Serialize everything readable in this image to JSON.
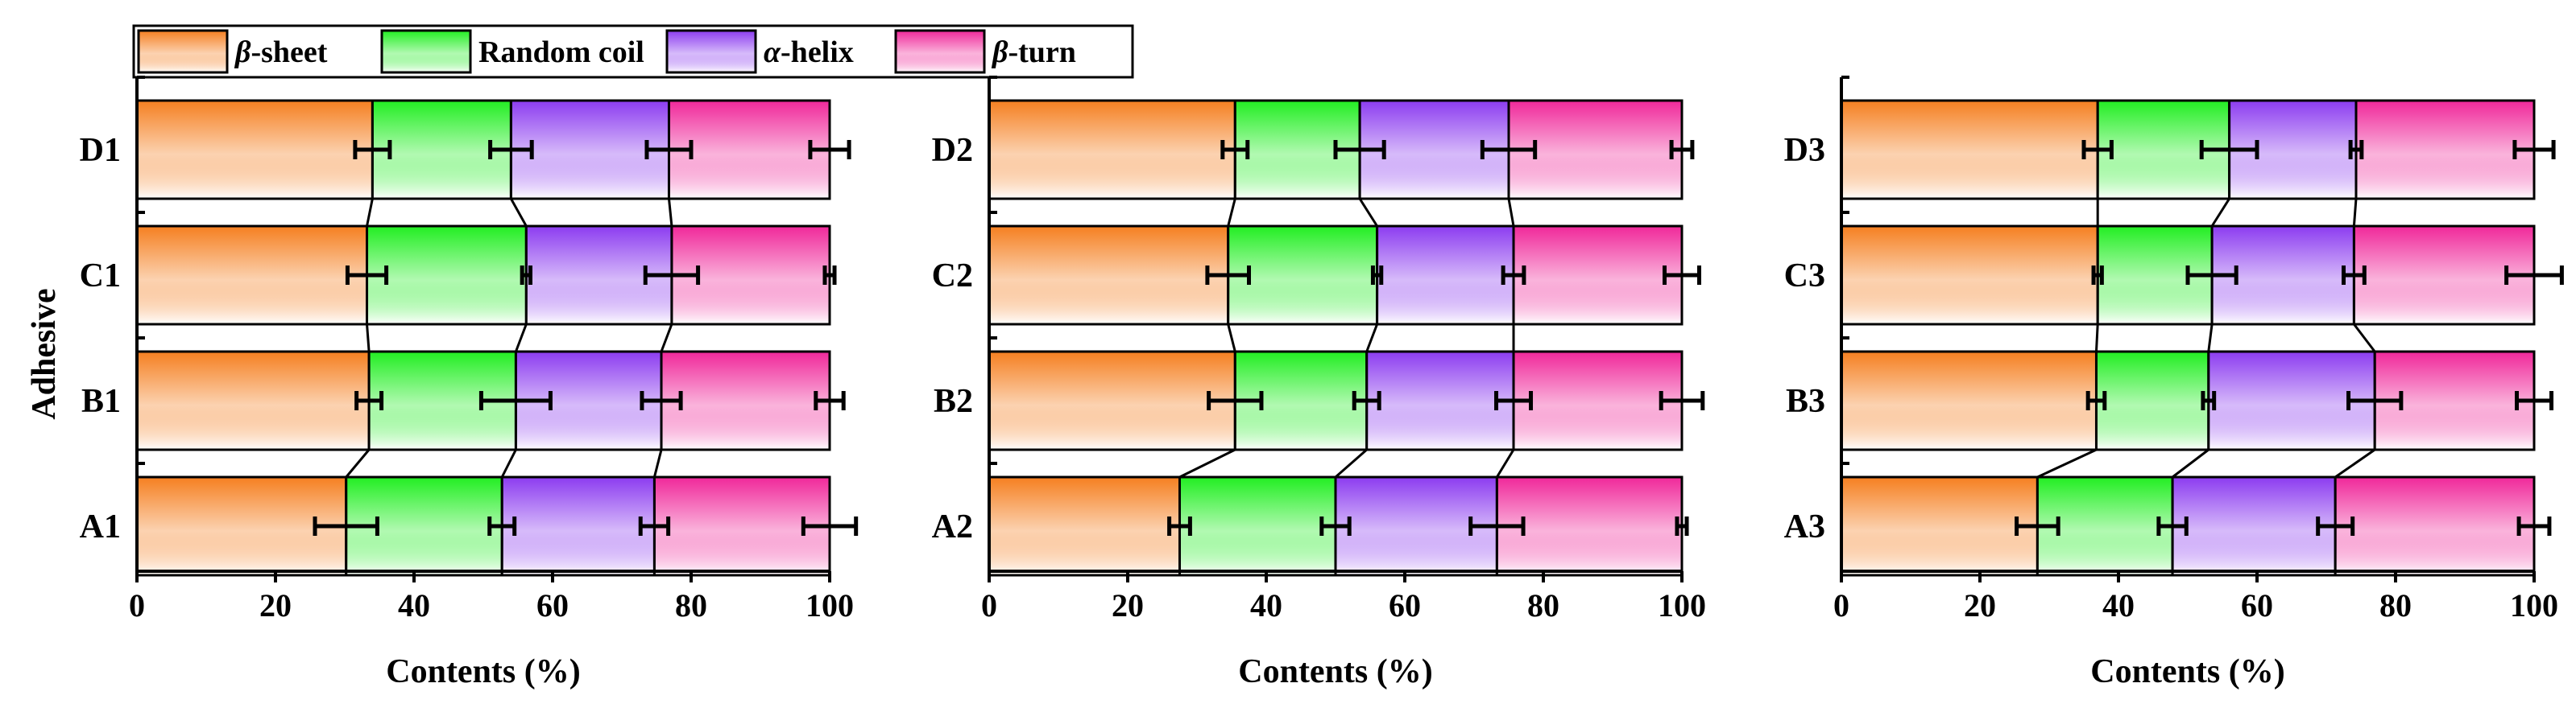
{
  "colors": {
    "beta_sheet": "#f57f20",
    "random_coil": "#22ee22",
    "alpha_helix": "#8c3cf0",
    "beta_turn": "#f0289a",
    "error_bar": "#000000"
  },
  "legend": {
    "items": [
      {
        "key": "beta_sheet",
        "greek": "β",
        "rest": "-sheet"
      },
      {
        "key": "random_coil",
        "greek": "",
        "rest": "Random coil"
      },
      {
        "key": "alpha_helix",
        "greek": "α",
        "rest": "-helix"
      },
      {
        "key": "beta_turn",
        "greek": "β",
        "rest": "-turn"
      }
    ]
  },
  "y_axis_title": "Adhesive",
  "chart_data": [
    {
      "type": "bar",
      "stacked": true,
      "orientation": "horizontal",
      "xlabel": "Contents (%)",
      "xlim": [
        0,
        100
      ],
      "xticks": [
        0,
        20,
        40,
        60,
        80,
        100
      ],
      "categories": [
        "D1",
        "C1",
        "B1",
        "A1"
      ],
      "series": [
        {
          "name": "β-sheet",
          "values": [
            34.0,
            33.2,
            33.5,
            30.2
          ],
          "errors": [
            2.5,
            2.8,
            1.8,
            4.5
          ]
        },
        {
          "name": "Random coil",
          "values": [
            20.0,
            23.0,
            21.2,
            22.5
          ],
          "errors": [
            3.0,
            0.6,
            5.0,
            1.8
          ]
        },
        {
          "name": "α-helix",
          "values": [
            22.8,
            21.0,
            21.0,
            22.0
          ],
          "errors": [
            3.2,
            3.8,
            2.8,
            2.0
          ]
        },
        {
          "name": "β-turn",
          "values": [
            23.2,
            22.8,
            24.3,
            25.3
          ],
          "errors": [
            2.8,
            0.7,
            2.0,
            3.8
          ]
        }
      ]
    },
    {
      "type": "bar",
      "stacked": true,
      "orientation": "horizontal",
      "xlabel": "Contents (%)",
      "xlim": [
        0,
        100
      ],
      "xticks": [
        0,
        20,
        40,
        60,
        80,
        100
      ],
      "categories": [
        "D2",
        "C2",
        "B2",
        "A2"
      ],
      "series": [
        {
          "name": "β-sheet",
          "values": [
            35.5,
            34.5,
            35.5,
            27.5
          ],
          "errors": [
            1.8,
            3.0,
            3.8,
            1.5
          ]
        },
        {
          "name": "Random coil",
          "values": [
            18.0,
            21.5,
            19.0,
            22.5
          ],
          "errors": [
            3.5,
            0.6,
            1.8,
            2.0
          ]
        },
        {
          "name": "α-helix",
          "values": [
            21.5,
            19.7,
            21.2,
            23.3
          ],
          "errors": [
            3.8,
            1.5,
            2.5,
            3.8
          ]
        },
        {
          "name": "β-turn",
          "values": [
            25.0,
            24.3,
            24.3,
            26.7
          ],
          "errors": [
            1.5,
            2.5,
            3.0,
            0.7
          ]
        }
      ]
    },
    {
      "type": "bar",
      "stacked": true,
      "orientation": "horizontal",
      "xlabel": "Contents (%)",
      "xlim": [
        0,
        100
      ],
      "xticks": [
        0,
        20,
        40,
        60,
        80,
        100
      ],
      "categories": [
        "D3",
        "C3",
        "B3",
        "A3"
      ],
      "series": [
        {
          "name": "β-sheet",
          "values": [
            37.0,
            37.0,
            36.8,
            28.3
          ],
          "errors": [
            2.0,
            0.6,
            1.2,
            3.0
          ]
        },
        {
          "name": "Random coil",
          "values": [
            19.0,
            16.5,
            16.2,
            19.5
          ],
          "errors": [
            4.0,
            3.5,
            0.8,
            2.0
          ]
        },
        {
          "name": "α-helix",
          "values": [
            18.3,
            20.5,
            24.0,
            23.5
          ],
          "errors": [
            0.8,
            1.5,
            3.8,
            2.5
          ]
        },
        {
          "name": "β-turn",
          "values": [
            25.7,
            26.0,
            23.0,
            28.7
          ],
          "errors": [
            2.8,
            4.0,
            2.5,
            2.2
          ]
        }
      ]
    }
  ]
}
